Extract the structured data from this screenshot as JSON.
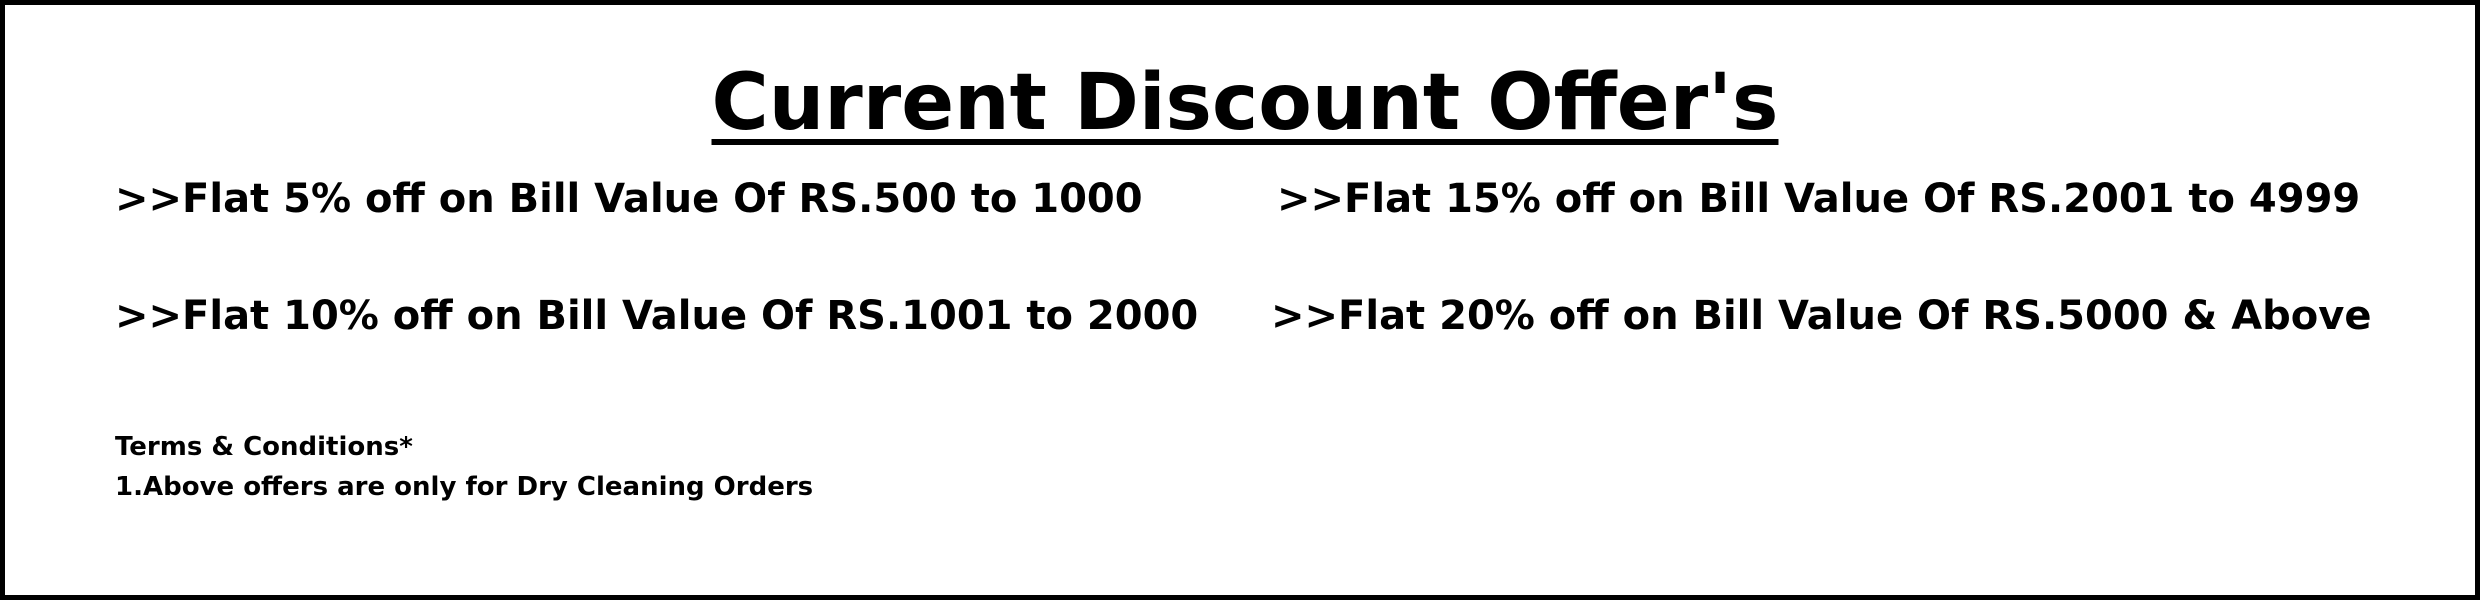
{
  "title": "Current Discount Offer's",
  "offers": [
    ">>Flat 5% off on Bill Value Of RS.500 to 1000",
    ">>Flat 15% off on Bill Value Of RS.2001 to 4999",
    ">>Flat 10% off on Bill Value Of RS.1001 to 2000",
    ">>Flat 20% off on Bill Value Of RS.5000 & Above"
  ],
  "terms": {
    "heading": "Terms & Conditions*",
    "items": [
      "1.Above offers are only for Dry Cleaning Orders"
    ]
  }
}
